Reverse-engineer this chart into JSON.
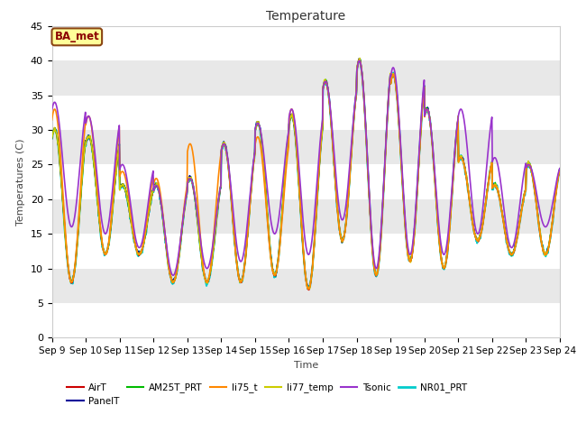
{
  "title": "Temperature",
  "xlabel": "Time",
  "ylabel": "Temperatures (C)",
  "ylim": [
    0,
    45
  ],
  "xlim": [
    0,
    15
  ],
  "annotation": "BA_met",
  "fig_color": "#ffffff",
  "plot_bg_color": "#e8e8e8",
  "series": {
    "AirT": {
      "color": "#cc0000",
      "lw": 1.0,
      "zorder": 4
    },
    "PanelT": {
      "color": "#000099",
      "lw": 1.0,
      "zorder": 4
    },
    "AM25T_PRT": {
      "color": "#00bb00",
      "lw": 1.0,
      "zorder": 4
    },
    "li75_t": {
      "color": "#ff8800",
      "lw": 1.2,
      "zorder": 5
    },
    "li77_temp": {
      "color": "#cccc00",
      "lw": 1.2,
      "zorder": 5
    },
    "Tsonic": {
      "color": "#9933cc",
      "lw": 1.2,
      "zorder": 6
    },
    "NR01_PRT": {
      "color": "#00cccc",
      "lw": 1.5,
      "zorder": 3
    }
  },
  "xtick_labels": [
    "Sep 9",
    "Sep 10",
    "Sep 11",
    "Sep 12",
    "Sep 13",
    "Sep 14",
    "Sep 15",
    "Sep 16",
    "Sep 17",
    "Sep 18",
    "Sep 19",
    "Sep 20",
    "Sep 21",
    "Sep 22",
    "Sep 23",
    "Sep 24"
  ],
  "ytick_vals": [
    0,
    5,
    10,
    15,
    20,
    25,
    30,
    35,
    40,
    45
  ],
  "daily_max": [
    30,
    29,
    22,
    22,
    23,
    28,
    31,
    32,
    37,
    40,
    38,
    33,
    26,
    22,
    25
  ],
  "daily_min": [
    8,
    12,
    12,
    8,
    8,
    8,
    9,
    7,
    14,
    9,
    11,
    10,
    14,
    12,
    12
  ],
  "tsonic_max": [
    34,
    32,
    25,
    22,
    23,
    28,
    31,
    33,
    37,
    40,
    39,
    33,
    33,
    26,
    25
  ],
  "tsonic_min": [
    16,
    15,
    13,
    9,
    10,
    11,
    15,
    12,
    17,
    10,
    12,
    12,
    15,
    13,
    16
  ],
  "li75_extra_max": [
    33,
    32,
    24,
    23,
    28,
    28,
    29,
    33,
    37,
    40,
    38,
    33,
    26,
    22,
    25
  ],
  "li75_extra_min": [
    8,
    12,
    12,
    8,
    8,
    8,
    9,
    7,
    14,
    9,
    11,
    10,
    14,
    12,
    12
  ]
}
